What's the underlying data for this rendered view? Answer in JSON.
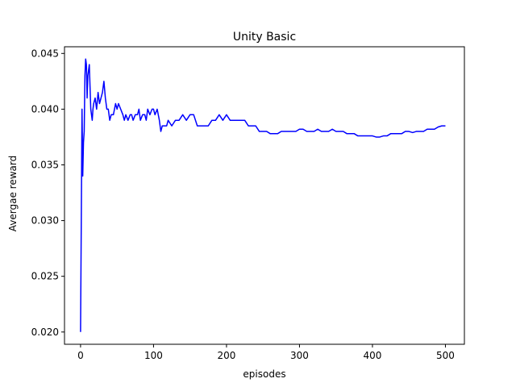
{
  "chart_data": {
    "type": "line",
    "title": "Unity Basic",
    "xlabel": "episodes",
    "ylabel": "Avergae reward",
    "xlim": [
      -22,
      526
    ],
    "ylim": [
      0.0189,
      0.0456
    ],
    "xticks": [
      0,
      100,
      200,
      300,
      400,
      500
    ],
    "yticks": [
      0.02,
      0.025,
      0.03,
      0.035,
      0.04,
      0.045
    ],
    "ytick_labels": [
      "0.020",
      "0.025",
      "0.030",
      "0.035",
      "0.040",
      "0.045"
    ],
    "grid": false,
    "series": [
      {
        "color": "#0000ff",
        "x": [
          0,
          1,
          2,
          3,
          4,
          5,
          6,
          7,
          8,
          9,
          10,
          11,
          12,
          13,
          14,
          15,
          16,
          17,
          18,
          20,
          22,
          24,
          26,
          28,
          30,
          32,
          34,
          36,
          38,
          40,
          42,
          45,
          48,
          50,
          52,
          55,
          58,
          60,
          62,
          65,
          68,
          70,
          72,
          75,
          78,
          80,
          82,
          85,
          88,
          90,
          92,
          95,
          98,
          100,
          102,
          105,
          108,
          110,
          112,
          115,
          118,
          120,
          125,
          130,
          135,
          140,
          145,
          150,
          155,
          160,
          165,
          170,
          175,
          180,
          185,
          190,
          195,
          200,
          205,
          210,
          215,
          220,
          225,
          230,
          235,
          240,
          245,
          250,
          255,
          260,
          265,
          270,
          275,
          280,
          285,
          290,
          295,
          300,
          305,
          310,
          315,
          320,
          325,
          330,
          335,
          340,
          345,
          350,
          355,
          360,
          365,
          370,
          375,
          380,
          385,
          390,
          395,
          400,
          405,
          410,
          415,
          420,
          425,
          430,
          435,
          440,
          445,
          450,
          455,
          460,
          465,
          470,
          475,
          480,
          485,
          490,
          495,
          500
        ],
        "y": [
          0.02,
          0.03,
          0.04,
          0.034,
          0.037,
          0.038,
          0.043,
          0.0445,
          0.044,
          0.041,
          0.043,
          0.0435,
          0.044,
          0.042,
          0.04,
          0.0395,
          0.039,
          0.04,
          0.0405,
          0.041,
          0.04,
          0.0415,
          0.0405,
          0.041,
          0.0415,
          0.0425,
          0.041,
          0.04,
          0.04,
          0.039,
          0.0395,
          0.0395,
          0.0405,
          0.04,
          0.0405,
          0.04,
          0.0395,
          0.039,
          0.0395,
          0.039,
          0.0395,
          0.0395,
          0.039,
          0.0395,
          0.0395,
          0.04,
          0.039,
          0.0395,
          0.0395,
          0.039,
          0.04,
          0.0395,
          0.04,
          0.04,
          0.0395,
          0.04,
          0.039,
          0.038,
          0.0385,
          0.0385,
          0.0385,
          0.039,
          0.0385,
          0.039,
          0.039,
          0.0395,
          0.039,
          0.0395,
          0.0395,
          0.0385,
          0.0385,
          0.0385,
          0.0385,
          0.039,
          0.039,
          0.0395,
          0.039,
          0.0395,
          0.039,
          0.039,
          0.039,
          0.039,
          0.039,
          0.0385,
          0.0385,
          0.0385,
          0.038,
          0.038,
          0.038,
          0.0378,
          0.0378,
          0.0378,
          0.038,
          0.038,
          0.038,
          0.038,
          0.038,
          0.0382,
          0.0382,
          0.038,
          0.038,
          0.038,
          0.0382,
          0.038,
          0.038,
          0.038,
          0.0382,
          0.038,
          0.038,
          0.038,
          0.0378,
          0.0378,
          0.0378,
          0.0376,
          0.0376,
          0.0376,
          0.0376,
          0.0376,
          0.0375,
          0.0375,
          0.0376,
          0.0376,
          0.0378,
          0.0378,
          0.0378,
          0.0378,
          0.038,
          0.038,
          0.0379,
          0.038,
          0.038,
          0.038,
          0.0382,
          0.0382,
          0.0382,
          0.0384,
          0.0385,
          0.0385
        ]
      }
    ]
  }
}
